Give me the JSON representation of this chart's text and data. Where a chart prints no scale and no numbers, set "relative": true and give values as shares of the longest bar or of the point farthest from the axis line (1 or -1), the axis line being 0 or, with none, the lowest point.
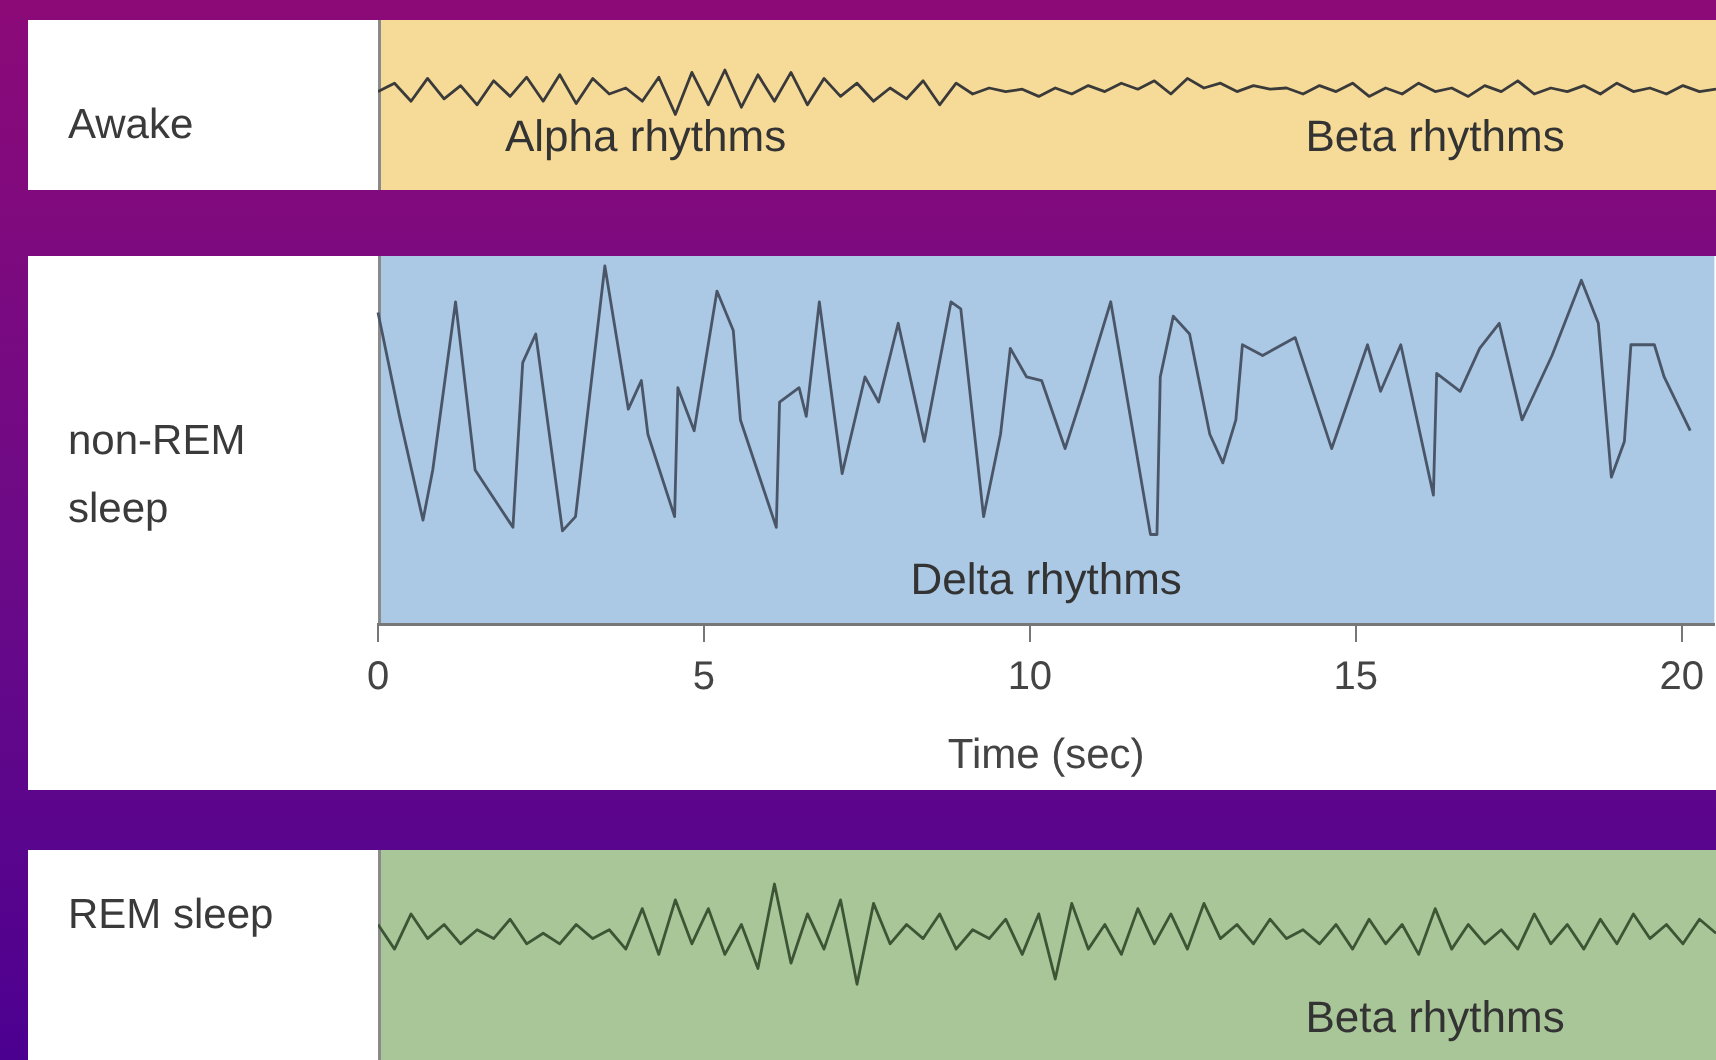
{
  "chart_data": [
    {
      "type": "line",
      "ylabel": "Awake",
      "relative": true,
      "marker": "none",
      "annotations": [
        "Alpha rhythms",
        "Beta rhythms"
      ],
      "categories": [
        null,
        null,
        null,
        null,
        null,
        null,
        null,
        null,
        null,
        null,
        null,
        null,
        null,
        null,
        null,
        null,
        null,
        null,
        null,
        null,
        null,
        null,
        null,
        null,
        null,
        null,
        null,
        null,
        null,
        null,
        null,
        null,
        null,
        null,
        null,
        null,
        null,
        null,
        null,
        null,
        null,
        null,
        null,
        null,
        null,
        null,
        null,
        null,
        null,
        null,
        null,
        null,
        null,
        null,
        null,
        null,
        null,
        null,
        null,
        null,
        null,
        null,
        null,
        null,
        null,
        null,
        null,
        null,
        null,
        null,
        null,
        null,
        null,
        null,
        null,
        null,
        null,
        null,
        null,
        null,
        null,
        null
      ],
      "series": [
        {
          "color": "#3a3a3a",
          "values": [
            0.82,
            0.89,
            0.74,
            0.93,
            0.76,
            0.87,
            0.71,
            0.91,
            0.78,
            0.94,
            0.74,
            0.96,
            0.72,
            0.93,
            0.8,
            0.85,
            0.74,
            0.94,
            0.63,
            0.98,
            0.71,
            1.0,
            0.69,
            0.96,
            0.74,
            0.98,
            0.71,
            0.93,
            0.78,
            0.89,
            0.74,
            0.85,
            0.76,
            0.91,
            0.71,
            0.89,
            0.8,
            0.85,
            0.82,
            0.84,
            0.78,
            0.85,
            0.8,
            0.87,
            0.82,
            0.89,
            0.84,
            0.91,
            0.8,
            0.93,
            0.85,
            0.89,
            0.82,
            0.87,
            0.84,
            0.85,
            0.8,
            0.87,
            0.82,
            0.89,
            0.78,
            0.85,
            0.8,
            0.89,
            0.82,
            0.85,
            0.78,
            0.87,
            0.82,
            0.91,
            0.8,
            0.85,
            0.82,
            0.87,
            0.8,
            0.89,
            0.82,
            0.85,
            0.8,
            0.87,
            0.82,
            0.84
          ]
        }
      ]
    },
    {
      "type": "line",
      "ylabel": "non-REM sleep",
      "xlabel": "Time (sec)",
      "relative": true,
      "marker": "none",
      "xlim": [
        0,
        20.5
      ],
      "xticks": [
        0,
        5,
        10,
        15,
        20
      ],
      "annotations": [
        "Delta rhythms"
      ],
      "x": [
        0,
        0.33,
        0.69,
        0.84,
        1.19,
        1.49,
        2.07,
        2.22,
        2.42,
        2.83,
        3.03,
        3.48,
        3.84,
        4.04,
        4.14,
        4.55,
        4.6,
        4.85,
        5.2,
        5.45,
        5.56,
        6.11,
        6.16,
        6.46,
        6.57,
        6.77,
        7.12,
        7.47,
        7.68,
        7.98,
        8.38,
        8.79,
        8.94,
        9.29,
        9.55,
        9.7,
        9.95,
        10.18,
        10.54,
        10.84,
        11.24,
        11.55,
        11.85,
        11.95,
        12.0,
        12.2,
        12.45,
        12.76,
        12.96,
        13.16,
        13.26,
        13.57,
        14.07,
        14.63,
        15.18,
        15.38,
        15.69,
        16.19,
        16.24,
        16.6,
        16.9,
        17.2,
        17.55,
        18.01,
        18.46,
        18.72,
        18.92,
        19.12,
        19.22,
        19.58,
        19.73,
        20.13
      ],
      "series": [
        {
          "color": "#4a5668",
          "values": [
            0.87,
            0.58,
            0.29,
            0.43,
            0.9,
            0.43,
            0.27,
            0.73,
            0.81,
            0.26,
            0.3,
            1.0,
            0.6,
            0.68,
            0.53,
            0.3,
            0.66,
            0.54,
            0.93,
            0.82,
            0.57,
            0.27,
            0.62,
            0.66,
            0.58,
            0.9,
            0.42,
            0.69,
            0.62,
            0.84,
            0.51,
            0.9,
            0.88,
            0.3,
            0.53,
            0.77,
            0.69,
            0.68,
            0.49,
            0.66,
            0.9,
            0.57,
            0.25,
            0.25,
            0.69,
            0.86,
            0.81,
            0.53,
            0.45,
            0.57,
            0.78,
            0.75,
            0.8,
            0.49,
            0.78,
            0.65,
            0.78,
            0.36,
            0.7,
            0.65,
            0.77,
            0.84,
            0.57,
            0.75,
            0.96,
            0.84,
            0.41,
            0.51,
            0.78,
            0.78,
            0.69,
            0.54
          ]
        }
      ]
    },
    {
      "type": "line",
      "ylabel": "REM sleep",
      "relative": true,
      "marker": "none",
      "annotations": [
        "Beta rhythms"
      ],
      "categories": [
        null,
        null,
        null,
        null,
        null,
        null,
        null,
        null,
        null,
        null,
        null,
        null,
        null,
        null,
        null,
        null,
        null,
        null,
        null,
        null,
        null,
        null,
        null,
        null,
        null,
        null,
        null,
        null,
        null,
        null,
        null,
        null,
        null,
        null,
        null,
        null,
        null,
        null,
        null,
        null,
        null,
        null,
        null,
        null,
        null,
        null,
        null,
        null,
        null,
        null,
        null,
        null,
        null,
        null,
        null,
        null,
        null,
        null,
        null,
        null,
        null,
        null,
        null,
        null,
        null,
        null,
        null,
        null,
        null,
        null,
        null,
        null,
        null,
        null,
        null,
        null,
        null,
        null,
        null,
        null,
        null,
        null
      ],
      "series": [
        {
          "color": "#3d5535",
          "values": [
            0.77,
            0.63,
            0.83,
            0.69,
            0.77,
            0.66,
            0.74,
            0.69,
            0.8,
            0.66,
            0.72,
            0.66,
            0.77,
            0.69,
            0.74,
            0.63,
            0.86,
            0.6,
            0.91,
            0.66,
            0.86,
            0.6,
            0.77,
            0.52,
            1.0,
            0.55,
            0.83,
            0.63,
            0.91,
            0.43,
            0.89,
            0.66,
            0.77,
            0.69,
            0.83,
            0.63,
            0.74,
            0.69,
            0.8,
            0.6,
            0.83,
            0.46,
            0.89,
            0.63,
            0.77,
            0.6,
            0.86,
            0.66,
            0.83,
            0.63,
            0.89,
            0.69,
            0.77,
            0.66,
            0.8,
            0.69,
            0.74,
            0.66,
            0.77,
            0.63,
            0.8,
            0.66,
            0.77,
            0.6,
            0.86,
            0.63,
            0.77,
            0.66,
            0.74,
            0.63,
            0.83,
            0.66,
            0.77,
            0.63,
            0.8,
            0.66,
            0.83,
            0.69,
            0.77,
            0.66,
            0.8,
            0.72
          ]
        }
      ]
    }
  ]
}
